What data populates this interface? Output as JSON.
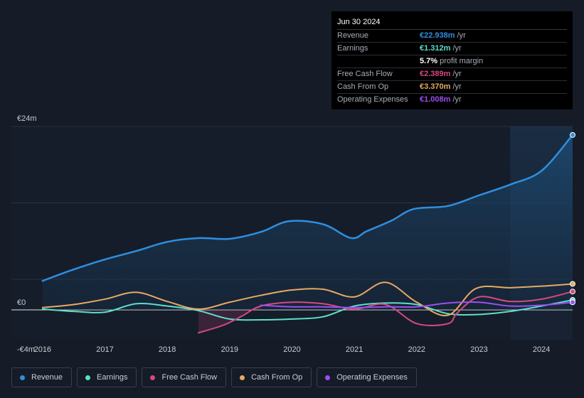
{
  "chart_data": {
    "type": "line",
    "currency_unit": "m",
    "y_tick_labels": [
      {
        "value": 24,
        "label": "€24m"
      },
      {
        "value": 0,
        "label": "€0"
      },
      {
        "value": -4,
        "label": "-€4m"
      }
    ],
    "ylim": [
      -4,
      24
    ],
    "xlim": [
      2015.5,
      2024.5
    ],
    "x_ticks": [
      2016,
      2017,
      2018,
      2019,
      2020,
      2021,
      2022,
      2023,
      2024
    ],
    "forecast_start": 2023.5,
    "colors": {
      "revenue": "#2f8fe0",
      "earnings": "#5ce0c8",
      "fcf": "#d6497f",
      "cfo": "#e8a963",
      "opex": "#9b4ff0",
      "grid": "#2a3140",
      "zero": "#dfe3e8"
    },
    "series": [
      {
        "key": "revenue",
        "name": "Revenue",
        "points": [
          [
            2016,
            3.8
          ],
          [
            2016.5,
            5.3
          ],
          [
            2017,
            6.6
          ],
          [
            2017.5,
            7.7
          ],
          [
            2018,
            8.9
          ],
          [
            2018.5,
            9.4
          ],
          [
            2019,
            9.3
          ],
          [
            2019.5,
            10.2
          ],
          [
            2019.95,
            11.6
          ],
          [
            2020.5,
            11.2
          ],
          [
            2020.95,
            9.4
          ],
          [
            2021.2,
            10.3
          ],
          [
            2021.6,
            11.7
          ],
          [
            2021.95,
            13.2
          ],
          [
            2022.5,
            13.6
          ],
          [
            2023,
            15.0
          ],
          [
            2023.5,
            16.4
          ],
          [
            2024,
            18.2
          ],
          [
            2024.5,
            22.9
          ]
        ]
      },
      {
        "key": "earnings",
        "name": "Earnings",
        "points": [
          [
            2016,
            0.1
          ],
          [
            2016.5,
            -0.2
          ],
          [
            2017,
            -0.3
          ],
          [
            2017.5,
            0.8
          ],
          [
            2018,
            0.5
          ],
          [
            2018.5,
            -0.1
          ],
          [
            2019,
            -1.2
          ],
          [
            2019.5,
            -1.3
          ],
          [
            2020,
            -1.2
          ],
          [
            2020.5,
            -0.9
          ],
          [
            2021,
            0.5
          ],
          [
            2021.5,
            0.9
          ],
          [
            2022,
            0.7
          ],
          [
            2022.5,
            -0.5
          ],
          [
            2023,
            -0.6
          ],
          [
            2023.5,
            -0.2
          ],
          [
            2024,
            0.5
          ],
          [
            2024.5,
            1.3
          ]
        ]
      },
      {
        "key": "fcf",
        "name": "Free Cash Flow",
        "points": [
          [
            2018.5,
            -3.0
          ],
          [
            2018.9,
            -2.0
          ],
          [
            2019.2,
            -0.8
          ],
          [
            2019.5,
            0.5
          ],
          [
            2020,
            1.0
          ],
          [
            2020.5,
            0.8
          ],
          [
            2021,
            0.1
          ],
          [
            2021.5,
            0.7
          ],
          [
            2022,
            -1.8
          ],
          [
            2022.5,
            -1.8
          ],
          [
            2022.65,
            -0.4
          ],
          [
            2023,
            1.7
          ],
          [
            2023.5,
            1.1
          ],
          [
            2024,
            1.4
          ],
          [
            2024.5,
            2.4
          ]
        ]
      },
      {
        "key": "cfo",
        "name": "Cash From Op",
        "points": [
          [
            2016,
            0.3
          ],
          [
            2016.5,
            0.7
          ],
          [
            2017,
            1.4
          ],
          [
            2017.5,
            2.3
          ],
          [
            2018,
            1.1
          ],
          [
            2018.5,
            0.1
          ],
          [
            2019,
            1.0
          ],
          [
            2019.5,
            1.9
          ],
          [
            2020,
            2.6
          ],
          [
            2020.5,
            2.7
          ],
          [
            2021,
            1.7
          ],
          [
            2021.5,
            3.6
          ],
          [
            2022,
            1.0
          ],
          [
            2022.5,
            -0.7
          ],
          [
            2022.95,
            2.8
          ],
          [
            2023.5,
            2.9
          ],
          [
            2024,
            3.1
          ],
          [
            2024.5,
            3.4
          ]
        ]
      },
      {
        "key": "opex",
        "name": "Operating Expenses",
        "points": [
          [
            2019.5,
            0.6
          ],
          [
            2020,
            0.4
          ],
          [
            2020.5,
            0.4
          ],
          [
            2021,
            0.3
          ],
          [
            2021.5,
            0.4
          ],
          [
            2022,
            0.4
          ],
          [
            2022.5,
            0.9
          ],
          [
            2023,
            1.0
          ],
          [
            2023.5,
            0.5
          ],
          [
            2024,
            0.6
          ],
          [
            2024.5,
            1.0
          ]
        ]
      }
    ]
  },
  "tooltip": {
    "date": "Jun 30 2024",
    "rows": [
      {
        "label": "Revenue",
        "value": "€22.938m",
        "unit": "/yr",
        "color": "#2f8fe0"
      },
      {
        "label": "Earnings",
        "value": "€1.312m",
        "unit": "/yr",
        "color": "#5ce0c8"
      },
      {
        "label": "",
        "value": "5.7%",
        "unit": "profit margin",
        "color": "#ffffff"
      },
      {
        "label": "Free Cash Flow",
        "value": "€2.389m",
        "unit": "/yr",
        "color": "#d6497f"
      },
      {
        "label": "Cash From Op",
        "value": "€3.370m",
        "unit": "/yr",
        "color": "#e8a963"
      },
      {
        "label": "Operating Expenses",
        "value": "€1.008m",
        "unit": "/yr",
        "color": "#9b4ff0"
      }
    ]
  },
  "legend": [
    {
      "key": "revenue",
      "label": "Revenue",
      "color": "#2f8fe0"
    },
    {
      "key": "earnings",
      "label": "Earnings",
      "color": "#5ce0c8"
    },
    {
      "key": "fcf",
      "label": "Free Cash Flow",
      "color": "#d6497f"
    },
    {
      "key": "cfo",
      "label": "Cash From Op",
      "color": "#e8a963"
    },
    {
      "key": "opex",
      "label": "Operating Expenses",
      "color": "#9b4ff0"
    }
  ]
}
